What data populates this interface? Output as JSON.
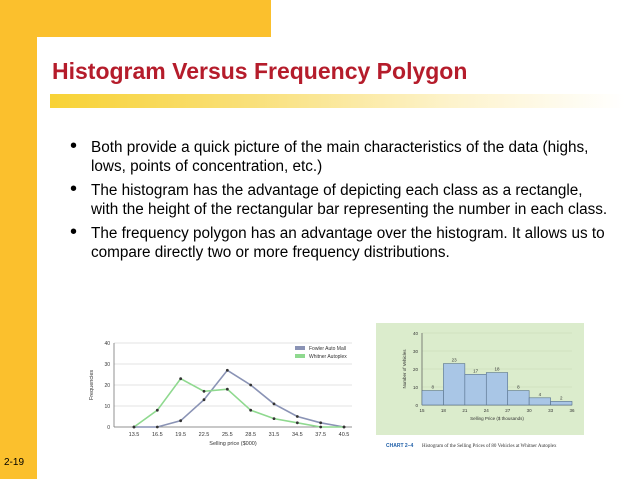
{
  "slide": {
    "title": "Histogram Versus Frequency Polygon",
    "bullets": [
      "Both provide a quick picture of the main characteristics of the data (highs, lows, points of concentration, etc.)",
      "The histogram has the advantage of depicting each class as a rectangle, with the height of the rectangular bar representing the number in each class.",
      "The frequency polygon has an advantage over the histogram. It allows us to compare directly two or more frequency distributions."
    ],
    "slide_number": "2-19",
    "colors": {
      "title": "#b51c2b",
      "accent_orange": "#fbc02d"
    }
  },
  "chart_data": [
    {
      "type": "line",
      "title": "",
      "xlabel": "Selling price ($000)",
      "ylabel": "Frequencies",
      "x_ticks": [
        "13.5",
        "16.5",
        "19.5",
        "22.5",
        "25.5",
        "28.5",
        "31.5",
        "34.5",
        "37.5",
        "40.5"
      ],
      "ylim": [
        0,
        40
      ],
      "y_ticks": [
        0,
        10,
        20,
        30,
        40
      ],
      "legend_position": "top-right",
      "series": [
        {
          "name": "Fowler Auto Mall",
          "color": "#8a93b5",
          "x": [
            13.5,
            16.5,
            19.5,
            22.5,
            25.5,
            28.5,
            31.5,
            34.5,
            37.5,
            40.5
          ],
          "y": [
            0,
            0,
            3,
            13,
            27,
            20,
            11,
            5,
            2,
            0
          ]
        },
        {
          "name": "Whitner Autoplex",
          "color": "#8fd98f",
          "x": [
            13.5,
            16.5,
            19.5,
            22.5,
            25.5,
            28.5,
            31.5,
            34.5,
            37.5,
            40.5
          ],
          "y": [
            0,
            8,
            23,
            17,
            18,
            8,
            4,
            2,
            0,
            0
          ]
        }
      ]
    },
    {
      "type": "bar",
      "title": "",
      "xlabel": "Selling Price ($ thousands)",
      "ylabel": "Number of Vehicles",
      "bin_edges": [
        15,
        18,
        21,
        24,
        27,
        30,
        33,
        36
      ],
      "values": [
        8,
        23,
        17,
        18,
        8,
        4,
        2
      ],
      "data_labels": [
        "8",
        "23",
        "17",
        "18",
        "8",
        "4",
        "2"
      ],
      "ylim": [
        0,
        40
      ],
      "y_ticks": [
        0,
        10,
        20,
        30,
        40
      ],
      "caption_label": "CHART 2–4",
      "caption_text": "Histogram of the Selling Prices of 80 Vehicles at Whitner Autoplex",
      "colors": {
        "panel": "#dbeccc",
        "bar": "#a9c6e6",
        "bar_edge": "#556f8a",
        "caption": "#1f5fa8"
      }
    }
  ]
}
